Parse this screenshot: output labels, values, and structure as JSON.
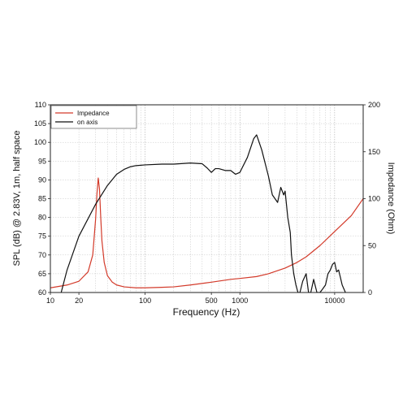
{
  "chart_data": {
    "type": "line",
    "xlabel": "Frequency (Hz)",
    "ylabel": "SPL (dB) @ 2.83V, 1m, half space",
    "y2label": "Impedance (Ohm)",
    "xscale": "log",
    "xlim": [
      10,
      20000
    ],
    "ylim": [
      60,
      110
    ],
    "y2lim": [
      0,
      200
    ],
    "x_ticks": [
      10,
      20,
      100,
      500,
      1000,
      10000
    ],
    "x_tick_labels": [
      "10",
      "20",
      "100",
      "500",
      "1000",
      "10000"
    ],
    "y_ticks": [
      60,
      65,
      70,
      75,
      80,
      85,
      90,
      95,
      100,
      105,
      110
    ],
    "y2_ticks": [
      0,
      50,
      100,
      150,
      200
    ],
    "grid": true,
    "legend_position": "top-left",
    "series": [
      {
        "name": "Impedance",
        "color": "#d33a2a",
        "axis": "right",
        "x": [
          10,
          15,
          20,
          25,
          28,
          30,
          31,
          32,
          33,
          34,
          35,
          37,
          40,
          45,
          50,
          60,
          80,
          100,
          150,
          200,
          300,
          500,
          800,
          1000,
          1500,
          2000,
          3000,
          4000,
          5000,
          7000,
          10000,
          15000,
          20000
        ],
        "values": [
          5,
          8,
          12,
          22,
          40,
          78,
          105,
          122,
          110,
          80,
          55,
          32,
          18,
          11,
          8,
          6,
          5,
          5,
          5.5,
          6,
          8,
          11,
          14,
          15,
          17,
          20,
          26,
          32,
          38,
          50,
          65,
          82,
          100
        ]
      },
      {
        "name": "on axis",
        "color": "#111111",
        "axis": "left",
        "x": [
          13,
          15,
          20,
          30,
          40,
          50,
          60,
          70,
          80,
          100,
          150,
          200,
          300,
          400,
          450,
          500,
          550,
          600,
          700,
          800,
          900,
          1000,
          1200,
          1400,
          1500,
          1700,
          2000,
          2200,
          2500,
          2700,
          2900,
          3000,
          3200,
          3400,
          3500,
          3700,
          3900,
          4100,
          4300,
          4600,
          5000,
          5300,
          5600,
          6000,
          6500,
          7000,
          7500,
          8000,
          8500,
          9000,
          9500,
          10000,
          10500,
          11000,
          11500,
          12000,
          13000
        ],
        "values": [
          60,
          66,
          75,
          83.5,
          88.5,
          91.5,
          92.8,
          93.5,
          93.8,
          94,
          94.2,
          94.2,
          94.5,
          94.3,
          93.2,
          92,
          93,
          93,
          92.5,
          92.5,
          91.5,
          92,
          96,
          101,
          102,
          98,
          91,
          86,
          84,
          88,
          86,
          87,
          80,
          76,
          70,
          65,
          62,
          60,
          60,
          63,
          65,
          60,
          60,
          63.5,
          60,
          60,
          61,
          62,
          65,
          66,
          67.5,
          68,
          65.5,
          66,
          64,
          62,
          60
        ]
      }
    ]
  }
}
